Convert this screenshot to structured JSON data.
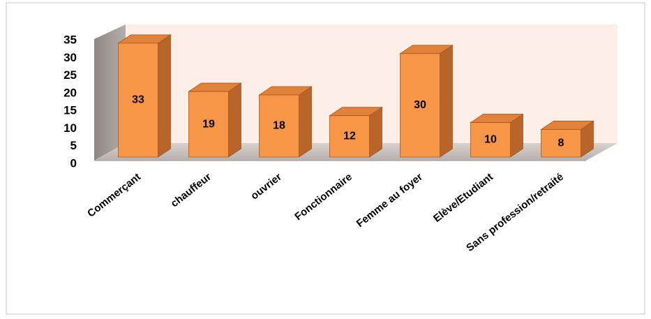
{
  "chart_data": {
    "type": "bar3d",
    "categories": [
      "Commerçant",
      "chauffeur",
      "ouvrier",
      "Fonctionnaire",
      "Femme au foyer",
      "Elève/Etudiant",
      "Sans profession/retraité"
    ],
    "values": [
      33,
      19,
      18,
      12,
      30,
      10,
      8
    ],
    "color": "#f79646",
    "ylim": [
      0,
      35
    ],
    "yticks": [
      0,
      5,
      10,
      15,
      20,
      25,
      30,
      35
    ]
  }
}
